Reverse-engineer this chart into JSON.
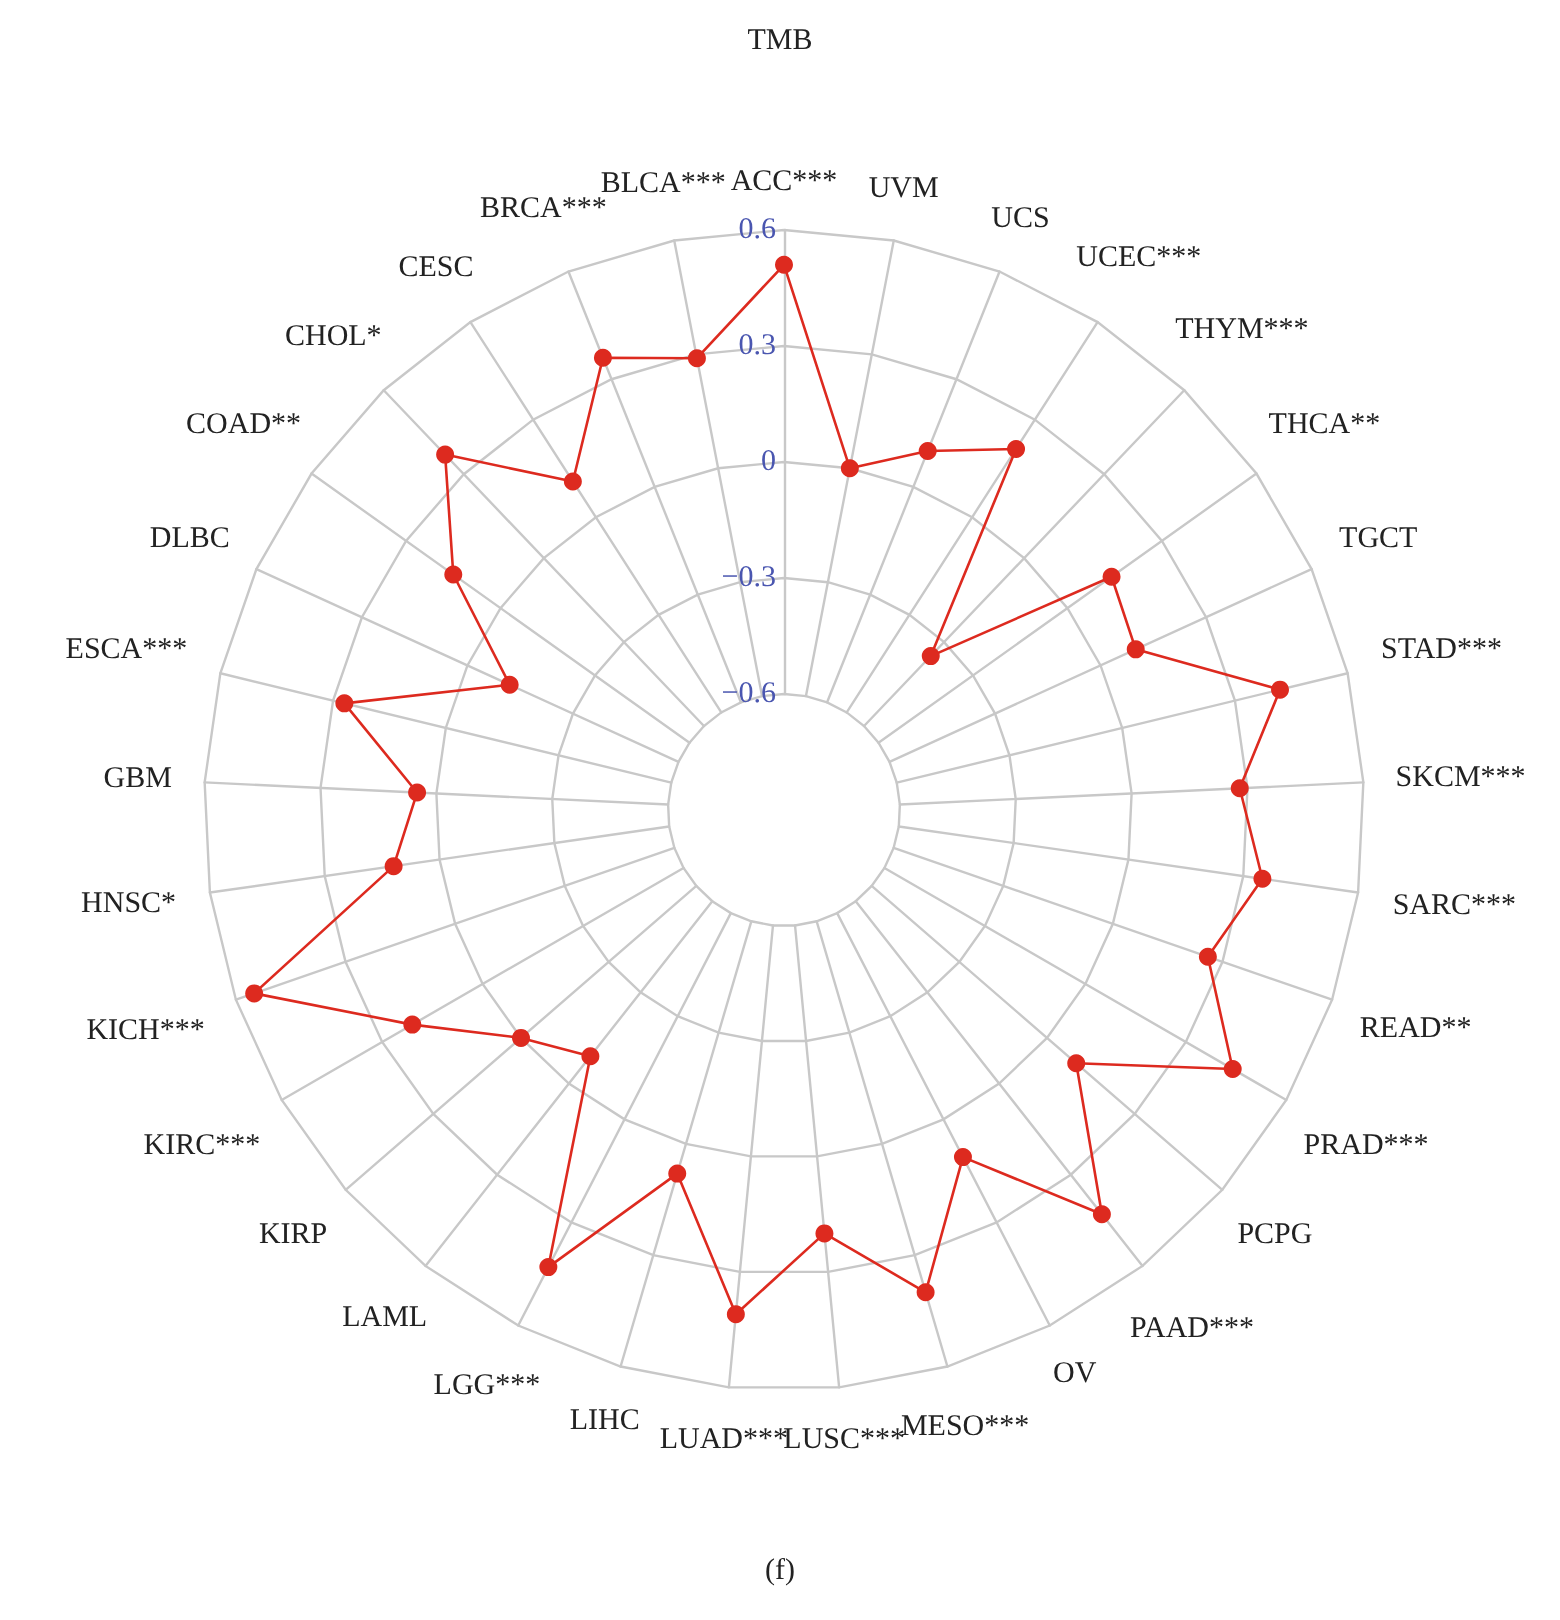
{
  "chart_data": {
    "type": "radar",
    "title": "TMB",
    "categories": [
      "ACC***",
      "UVM",
      "UCS",
      "UCEC***",
      "THYM***",
      "THCA**",
      "TGCT",
      "STAD***",
      "SKCM***",
      "SARC***",
      "READ**",
      "PRAD***",
      "PCPG",
      "PAAD***",
      "OV",
      "MESO***",
      "LUSC***",
      "LUAD***",
      "LIHC",
      "LGG***",
      "LAML",
      "KIRP",
      "KIRC***",
      "KICH***",
      "HNSC*",
      "GBM",
      "ESCA***",
      "DLBC",
      "COAD**",
      "CHOL*",
      "CESC",
      "BRCA***",
      "BLCA***"
    ],
    "series": [
      {
        "color": "#dd2a1f",
        "values": [
          0.51,
          0,
          0.1,
          0.21,
          -0.35,
          0.14,
          0.1,
          0.42,
          0.28,
          0.35,
          0.26,
          0.44,
          0.1,
          0.43,
          0.11,
          0.4,
          0.2,
          0.41,
          0.08,
          0.43,
          -0.09,
          0,
          0.21,
          0.55,
          0.12,
          0.05,
          0.27,
          -0.12,
          0.15,
          0.37,
          0.11,
          0.36,
          0.29
        ]
      }
    ],
    "ylim": [
      -0.9,
      0.6
    ],
    "yticks": [
      {
        "value": -0.6,
        "label": "−0.6"
      },
      {
        "value": -0.3,
        "label": "−0.3"
      },
      0,
      0.3,
      0.6
    ],
    "grid": true,
    "marker": "circle",
    "line_style": "solid",
    "annotations": [
      "(f)"
    ]
  }
}
